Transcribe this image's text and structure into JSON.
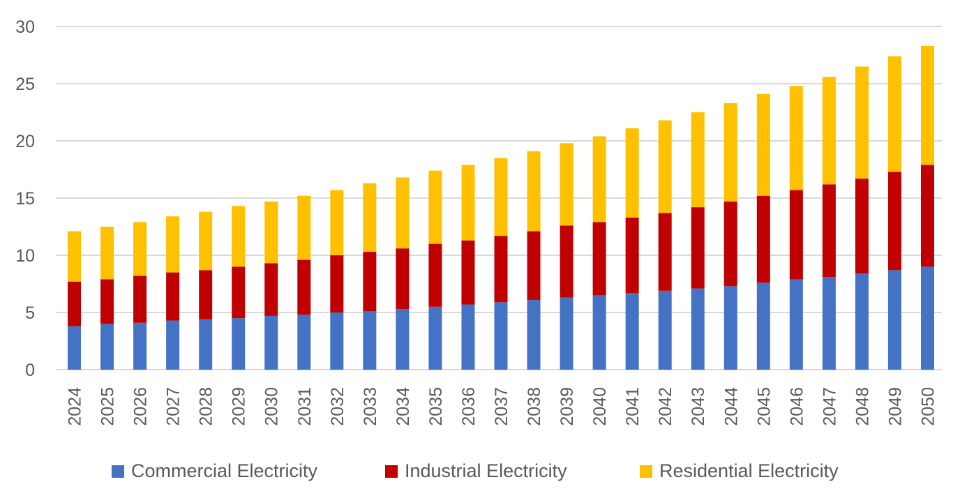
{
  "chart_data": {
    "type": "bar",
    "stacked": true,
    "title": "",
    "xlabel": "",
    "ylabel": "",
    "ylim": [
      0,
      30
    ],
    "yticks": [
      0,
      5,
      10,
      15,
      20,
      25,
      30
    ],
    "grid": true,
    "legend_position": "bottom",
    "categories": [
      "2024",
      "2025",
      "2026",
      "2027",
      "2028",
      "2029",
      "2030",
      "2031",
      "2032",
      "2033",
      "2034",
      "2035",
      "2036",
      "2037",
      "2038",
      "2039",
      "2040",
      "2041",
      "2042",
      "2043",
      "2044",
      "2045",
      "2046",
      "2047",
      "2048",
      "2049",
      "2050"
    ],
    "series": [
      {
        "name": "Commercial Electricity",
        "color": "#4472c4",
        "values": [
          3.8,
          4.0,
          4.1,
          4.3,
          4.4,
          4.5,
          4.7,
          4.8,
          5.0,
          5.1,
          5.3,
          5.5,
          5.7,
          5.9,
          6.1,
          6.3,
          6.5,
          6.7,
          6.9,
          7.1,
          7.3,
          7.6,
          7.9,
          8.1,
          8.4,
          8.7,
          9.0
        ]
      },
      {
        "name": "Industrial Electricity",
        "color": "#c00000",
        "values": [
          3.9,
          3.9,
          4.1,
          4.2,
          4.3,
          4.5,
          4.6,
          4.8,
          5.0,
          5.2,
          5.3,
          5.5,
          5.6,
          5.8,
          6.0,
          6.3,
          6.4,
          6.6,
          6.8,
          7.1,
          7.4,
          7.6,
          7.8,
          8.1,
          8.3,
          8.6,
          8.9
        ]
      },
      {
        "name": "Residential Electricity",
        "color": "#ffc000",
        "values": [
          4.4,
          4.6,
          4.7,
          4.9,
          5.1,
          5.3,
          5.4,
          5.6,
          5.7,
          6.0,
          6.2,
          6.4,
          6.6,
          6.8,
          7.0,
          7.2,
          7.5,
          7.8,
          8.1,
          8.3,
          8.6,
          8.9,
          9.1,
          9.4,
          9.8,
          10.1,
          10.4
        ]
      }
    ]
  }
}
